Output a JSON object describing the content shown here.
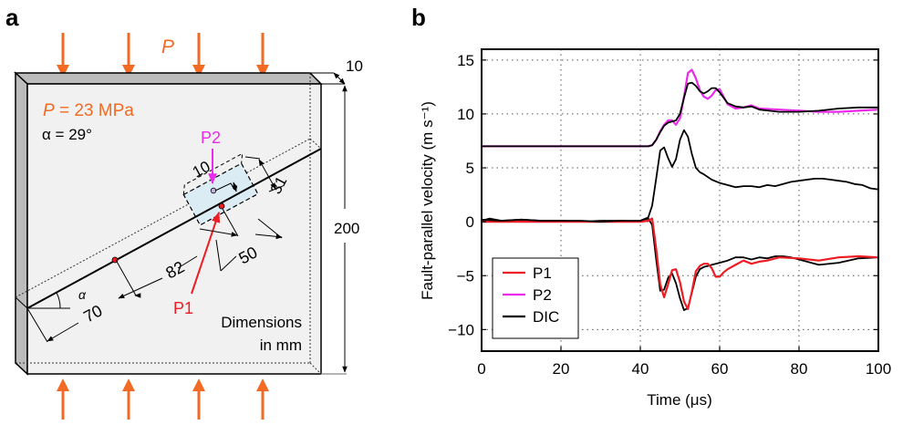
{
  "panel_a": {
    "label": "a",
    "load_symbol": "P",
    "pressure_text": "P = 23 MPa",
    "pressure_symbol": "P",
    "pressure_value": "= 23 MPa",
    "angle_text": "α = 29°",
    "angle_symbol": "α",
    "thickness": "10",
    "height": "200",
    "dim_70": "70",
    "dim_82": "82",
    "dim_50": "50",
    "dim_31": "31",
    "dim_10": "10",
    "probe_p1": "P1",
    "probe_p2": "P2",
    "units_line1": "Dimensions",
    "units_line2": "in mm",
    "colors": {
      "load": "#f26a23",
      "p1": "#ee1c24",
      "p2": "#ec2aec",
      "block_face": "#f1f1f1",
      "block_edge": "#bcbcbc",
      "window": "#dcecf4"
    }
  },
  "chart_data": {
    "type": "line",
    "panel_label": "b",
    "title": "",
    "xlabel": "Time (μs)",
    "ylabel": "Fault-parallel velocity (m s⁻¹)",
    "xlim": [
      0,
      100
    ],
    "ylim": [
      -12,
      16
    ],
    "xticks": [
      0,
      20,
      40,
      60,
      80,
      100
    ],
    "yticks": [
      -10,
      -5,
      0,
      5,
      10,
      15
    ],
    "xtick_labels": [
      "0",
      "20",
      "40",
      "60",
      "80",
      "100"
    ],
    "ytick_labels": [
      "−10",
      "−5",
      "0",
      "5",
      "10",
      "15"
    ],
    "grid": true,
    "legend": {
      "position": "bottom-left",
      "entries": [
        "P1",
        "P2",
        "DIC"
      ]
    },
    "series": [
      {
        "name": "P2",
        "color": "#ec2aec",
        "in_legend": true,
        "x": [
          0,
          10,
          20,
          30,
          40,
          42,
          43,
          44,
          45,
          46,
          47,
          48,
          49,
          50,
          51,
          52,
          53,
          54,
          55,
          56,
          57,
          58,
          59,
          60,
          62,
          64,
          66,
          68,
          70,
          75,
          80,
          85,
          90,
          95,
          100
        ],
        "y": [
          7.0,
          7.0,
          7.0,
          7.0,
          7.0,
          7.0,
          7.1,
          7.6,
          8.4,
          9.0,
          9.4,
          9.4,
          9.0,
          9.6,
          11.6,
          13.8,
          14.1,
          13.3,
          12.2,
          11.6,
          11.4,
          11.7,
          12.2,
          12.3,
          10.9,
          10.5,
          10.6,
          10.8,
          10.5,
          10.4,
          10.3,
          10.2,
          10.2,
          10.3,
          10.4
        ]
      },
      {
        "name": "DIC (P2 offset)",
        "color": "#000000",
        "in_legend": false,
        "x": [
          0,
          10,
          20,
          30,
          40,
          42,
          43,
          44,
          45,
          46,
          47,
          48,
          49,
          50,
          51,
          52,
          53,
          54,
          55,
          56,
          57,
          58,
          59,
          60,
          62,
          64,
          66,
          68,
          70,
          75,
          80,
          85,
          90,
          95,
          100
        ],
        "y": [
          7.0,
          7.0,
          7.0,
          7.0,
          7.0,
          7.0,
          7.1,
          7.6,
          8.3,
          8.9,
          9.2,
          9.3,
          9.4,
          10.0,
          11.5,
          12.8,
          12.9,
          12.6,
          12.1,
          11.9,
          12.1,
          12.4,
          12.4,
          12.0,
          11.0,
          10.7,
          10.6,
          10.7,
          10.4,
          10.2,
          10.2,
          10.3,
          10.5,
          10.6,
          10.6
        ]
      },
      {
        "name": "DIC (P1 offset)",
        "color": "#000000",
        "in_legend": false,
        "x": [
          0,
          2,
          5,
          10,
          15,
          20,
          25,
          30,
          35,
          40,
          41,
          42,
          43,
          44,
          45,
          46,
          47,
          48,
          49,
          50,
          51,
          52,
          53,
          54,
          55,
          56,
          57,
          58,
          60,
          62,
          64,
          66,
          68,
          70,
          72,
          74,
          76,
          78,
          80,
          85,
          90,
          95,
          100
        ],
        "y": [
          0.1,
          0.3,
          0.1,
          0.2,
          0.1,
          0.1,
          0.0,
          0.1,
          0.1,
          0.0,
          0.2,
          0.3,
          -0.3,
          -3.5,
          -6.4,
          -6.3,
          -5.2,
          -4.8,
          -5.7,
          -7.1,
          -8.2,
          -8.0,
          -6.6,
          -5.1,
          -4.4,
          -4.2,
          -4.1,
          -4.0,
          -3.8,
          -3.6,
          -3.3,
          -3.3,
          -3.5,
          -3.3,
          -3.4,
          -3.2,
          -3.2,
          -3.3,
          -3.5,
          -4.0,
          -3.8,
          -3.4,
          -3.3
        ]
      },
      {
        "name": "P1",
        "color": "#ee1c24",
        "in_legend": true,
        "x": [
          0,
          10,
          20,
          30,
          40,
          42,
          43,
          44,
          45,
          46,
          47,
          48,
          49,
          50,
          51,
          52,
          53,
          54,
          55,
          56,
          57,
          58,
          59,
          60,
          61,
          62,
          64,
          66,
          68,
          70,
          72,
          75,
          80,
          85,
          90,
          95,
          100
        ],
        "y": [
          0.0,
          0.0,
          0.0,
          0.0,
          0.0,
          0.1,
          0.3,
          -2.5,
          -5.8,
          -7.0,
          -5.8,
          -4.5,
          -4.4,
          -5.6,
          -7.4,
          -8.1,
          -6.5,
          -4.6,
          -4.1,
          -3.9,
          -3.9,
          -4.3,
          -5.1,
          -5.1,
          -4.7,
          -4.4,
          -4.0,
          -3.6,
          -3.9,
          -3.7,
          -3.6,
          -3.3,
          -3.4,
          -3.6,
          -3.3,
          -3.2,
          -3.3
        ]
      },
      {
        "name": "DIC",
        "color": "#000000",
        "in_legend": true,
        "x": [
          0,
          5,
          10,
          15,
          20,
          25,
          30,
          35,
          40,
          42,
          43,
          44,
          45,
          46,
          47,
          48,
          49,
          50,
          51,
          52,
          53,
          54,
          55,
          56,
          58,
          60,
          62,
          64,
          66,
          68,
          70,
          72,
          74,
          76,
          78,
          80,
          82,
          84,
          86,
          88,
          90,
          92,
          94,
          96,
          98,
          100
        ],
        "y": [
          0.2,
          0.1,
          0.2,
          0.1,
          0.1,
          0.1,
          0.0,
          0.1,
          0.1,
          0.4,
          1.5,
          4.0,
          6.6,
          6.9,
          5.9,
          5.1,
          5.8,
          7.6,
          8.5,
          7.9,
          6.3,
          5.0,
          4.6,
          4.4,
          3.9,
          3.6,
          3.4,
          3.2,
          3.3,
          3.3,
          3.2,
          3.4,
          3.3,
          3.5,
          3.7,
          3.8,
          3.9,
          4.0,
          4.0,
          3.9,
          3.8,
          3.7,
          3.5,
          3.4,
          3.1,
          3.0
        ]
      }
    ]
  }
}
